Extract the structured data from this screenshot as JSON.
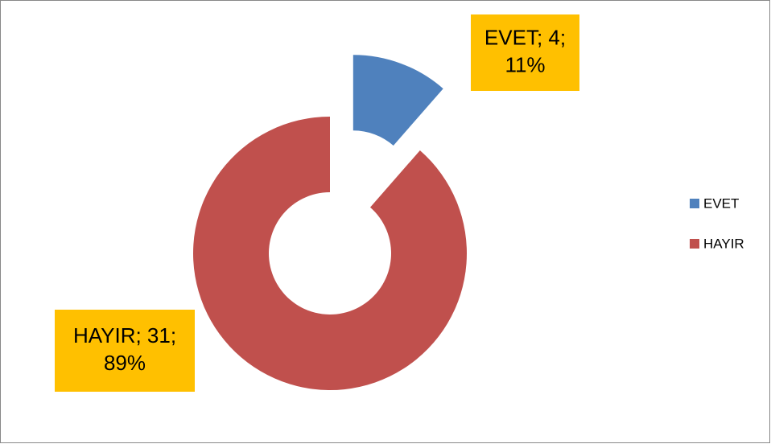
{
  "chart_data": {
    "type": "doughnut",
    "categories": [
      "EVET",
      "HAYIR"
    ],
    "values": [
      4,
      31
    ],
    "value_labels": [
      [
        "EVET; 4;",
        "11%"
      ],
      [
        "HAYIR; 31;",
        "89%"
      ]
    ],
    "colors": [
      "#4f81bd",
      "#c0504d"
    ],
    "exploded": [
      true,
      false
    ],
    "label_color": "#ffc000",
    "legend": "right"
  }
}
